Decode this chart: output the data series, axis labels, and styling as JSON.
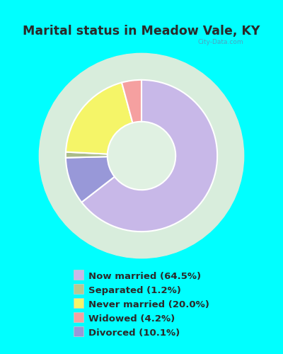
{
  "title": "Marital status in Meadow Vale, KY",
  "slices": [
    64.5,
    10.1,
    1.2,
    20.0,
    4.2
  ],
  "labels": [
    "Now married (64.5%)",
    "Separated (1.2%)",
    "Never married (20.0%)",
    "Widowed (4.2%)",
    "Divorced (10.1%)"
  ],
  "legend_colors": [
    "#c8b8e8",
    "#b8c890",
    "#f5f568",
    "#f5a0a0",
    "#9898d8"
  ],
  "slice_colors": [
    "#c8b8e8",
    "#9898d8",
    "#aabb88",
    "#f5f568",
    "#f5a0a0"
  ],
  "bg_cyan": "#00ffff",
  "bg_chart_color": "#d8eddc",
  "title_color": "#2a2a2a",
  "legend_text_color": "#2a2a2a",
  "watermark": "City-Data.com",
  "startangle": 90,
  "donut_width": 0.55
}
